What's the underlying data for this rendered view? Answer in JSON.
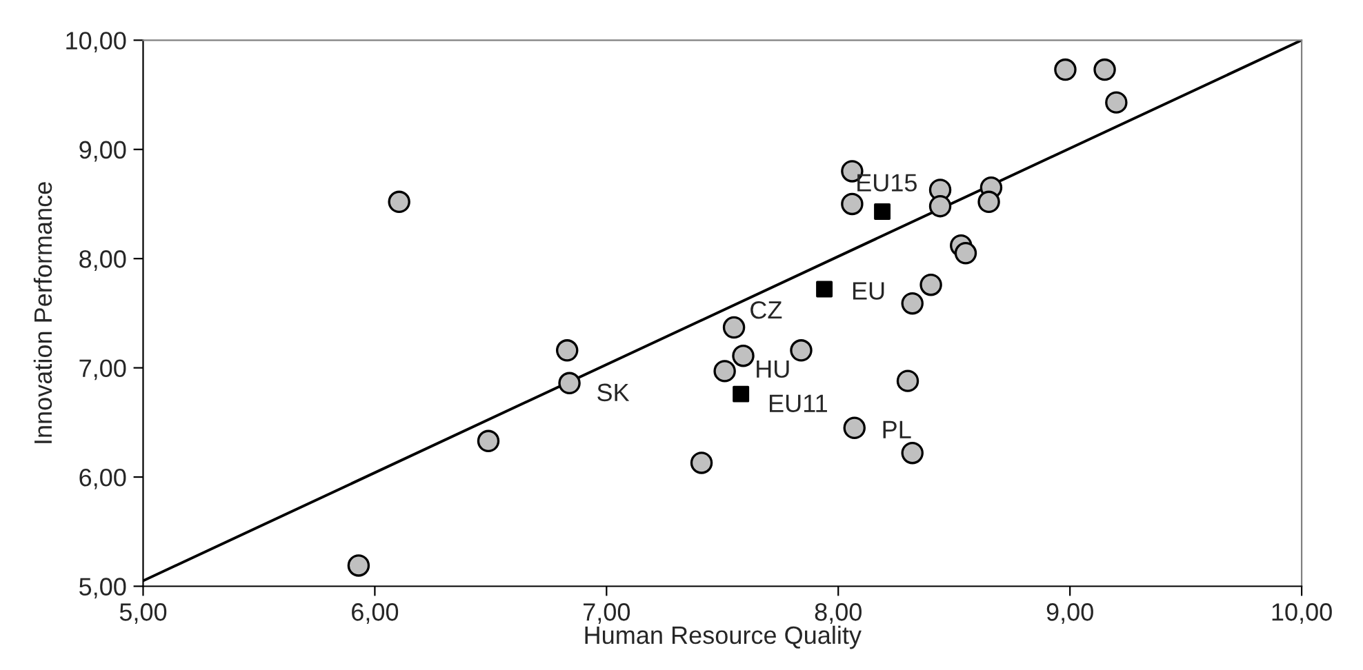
{
  "chart_data": {
    "type": "scatter",
    "xlabel": "Human Resource Quality",
    "ylabel": "Innovation Performance",
    "xlim": [
      5,
      10
    ],
    "ylim": [
      5,
      10
    ],
    "xticks": [
      {
        "value": 5,
        "label": "5,00"
      },
      {
        "value": 6,
        "label": "6,00"
      },
      {
        "value": 7,
        "label": "7,00"
      },
      {
        "value": 8,
        "label": "8,00"
      },
      {
        "value": 9,
        "label": "9,00"
      },
      {
        "value": 10,
        "label": "10,00"
      }
    ],
    "yticks": [
      {
        "value": 5,
        "label": "5,00"
      },
      {
        "value": 6,
        "label": "6,00"
      },
      {
        "value": 7,
        "label": "7,00"
      },
      {
        "value": 8,
        "label": "8,00"
      },
      {
        "value": 9,
        "label": "9,00"
      },
      {
        "value": 10,
        "label": "10,00"
      }
    ],
    "grid": false,
    "legend": false,
    "series": [
      {
        "marker": "circle",
        "color": "#c0c0c0",
        "x": [
          6.105,
          6.83,
          6.84,
          6.49,
          5.93,
          8.98,
          9.15,
          9.2,
          8.06,
          8.06,
          8.44,
          8.44,
          8.66,
          8.65,
          8.53,
          8.55,
          8.4,
          8.32,
          7.55,
          7.84,
          7.59,
          7.51,
          8.3,
          8.07,
          8.32,
          7.41
        ],
        "values": [
          8.52,
          7.16,
          6.86,
          6.33,
          5.19,
          9.73,
          9.73,
          9.43,
          8.8,
          8.5,
          8.63,
          8.48,
          8.65,
          8.52,
          8.12,
          8.05,
          7.76,
          7.59,
          7.37,
          7.16,
          7.11,
          6.97,
          6.88,
          6.45,
          6.22,
          6.13
        ]
      },
      {
        "marker": "square",
        "color": "#000000",
        "x": [
          8.19,
          7.94,
          7.58
        ],
        "values": [
          8.43,
          7.72,
          6.76
        ]
      },
      {
        "type": "line",
        "marker": "none",
        "line_style": "solid",
        "color": "#000000",
        "x": [
          5,
          10
        ],
        "values": [
          5.05,
          10.0
        ]
      }
    ],
    "annotations": [
      {
        "text": "SK",
        "x": 6.84,
        "y": 6.86
      },
      {
        "text": "CZ",
        "x": 7.55,
        "y": 7.37
      },
      {
        "text": "HU",
        "x": 7.59,
        "y": 7.11
      },
      {
        "text": "EU11",
        "x": 7.58,
        "y": 6.76
      },
      {
        "text": "PL",
        "x": 8.07,
        "y": 6.45
      },
      {
        "text": "EU",
        "x": 7.94,
        "y": 7.72
      },
      {
        "text": "EU15",
        "x": 8.19,
        "y": 8.43
      }
    ]
  }
}
